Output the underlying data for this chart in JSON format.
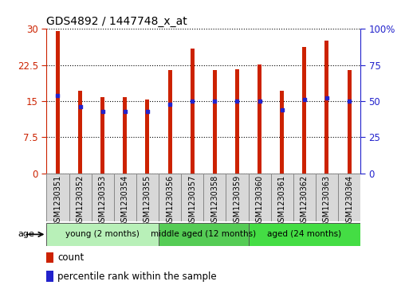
{
  "title": "GDS4892 / 1447748_x_at",
  "samples": [
    "GSM1230351",
    "GSM1230352",
    "GSM1230353",
    "GSM1230354",
    "GSM1230355",
    "GSM1230356",
    "GSM1230357",
    "GSM1230358",
    "GSM1230359",
    "GSM1230360",
    "GSM1230361",
    "GSM1230362",
    "GSM1230363",
    "GSM1230364"
  ],
  "counts": [
    29.5,
    17.2,
    15.8,
    15.8,
    15.3,
    21.5,
    26.0,
    21.5,
    21.7,
    22.6,
    17.1,
    26.2,
    27.5,
    21.5
  ],
  "percentiles": [
    54,
    46,
    43,
    43,
    43,
    48,
    50,
    50,
    50,
    50,
    44,
    51,
    52,
    50
  ],
  "groups": [
    {
      "label": "young (2 months)",
      "start": 0,
      "end": 5,
      "color": "#b8f0b8"
    },
    {
      "label": "middle aged (12 months)",
      "start": 5,
      "end": 9,
      "color": "#55cc55"
    },
    {
      "label": "aged (24 months)",
      "start": 9,
      "end": 14,
      "color": "#44dd44"
    }
  ],
  "left_yticks": [
    0,
    7.5,
    15,
    22.5,
    30
  ],
  "right_yticks": [
    0,
    25,
    50,
    75,
    100
  ],
  "right_yticklabels": [
    "0",
    "25",
    "50",
    "75",
    "100%"
  ],
  "left_ylim": [
    0,
    30
  ],
  "right_ylim": [
    0,
    100
  ],
  "bar_color": "#CC2200",
  "dot_color": "#2222CC",
  "bar_width": 0.18,
  "tick_color_left": "#CC2200",
  "tick_color_right": "#2222CC",
  "cell_bg": "#D8D8D8",
  "cell_border": "#888888"
}
